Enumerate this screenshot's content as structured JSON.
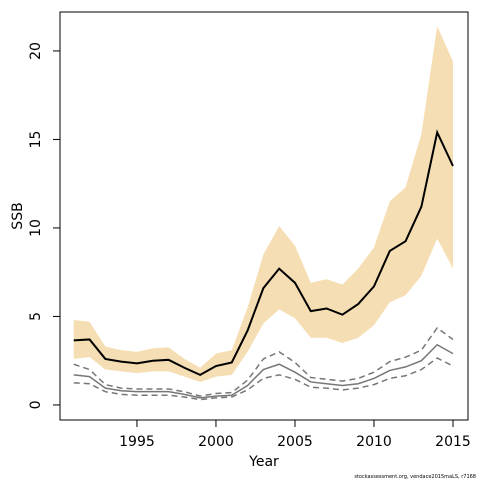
{
  "chart_data": {
    "type": "line",
    "xlabel": "Year",
    "ylabel": "SSB",
    "footnote": "stockassessment.org, vendace2015maLS, r7168",
    "x": [
      1991,
      1992,
      1993,
      1994,
      1995,
      1996,
      1997,
      1998,
      1999,
      2000,
      2001,
      2002,
      2003,
      2004,
      2005,
      2006,
      2007,
      2008,
      2009,
      2010,
      2011,
      2012,
      2013,
      2014,
      2015
    ],
    "band": {
      "color": "#f5deb3",
      "upper": [
        4.8,
        4.7,
        3.3,
        3.1,
        3.0,
        3.2,
        3.25,
        2.6,
        2.1,
        2.9,
        3.1,
        5.5,
        8.5,
        10.1,
        9.0,
        6.9,
        7.1,
        6.8,
        7.7,
        8.9,
        11.5,
        12.3,
        15.3,
        21.4,
        19.4
      ],
      "lower": [
        2.6,
        2.7,
        2.0,
        1.9,
        1.8,
        1.9,
        1.9,
        1.6,
        1.3,
        1.6,
        1.7,
        3.0,
        4.6,
        5.4,
        4.9,
        3.8,
        3.8,
        3.5,
        3.8,
        4.5,
        5.8,
        6.2,
        7.3,
        9.4,
        7.7
      ]
    },
    "series": [
      {
        "color": "#000000",
        "width": 2,
        "dashed": false,
        "values": [
          3.65,
          3.7,
          2.6,
          2.45,
          2.35,
          2.5,
          2.55,
          2.1,
          1.7,
          2.2,
          2.4,
          4.2,
          6.6,
          7.7,
          6.9,
          5.3,
          5.45,
          5.1,
          5.7,
          6.7,
          8.7,
          9.25,
          11.2,
          15.4,
          13.5
        ]
      },
      {
        "color": "#777777",
        "width": 1.5,
        "dashed": false,
        "values": [
          1.7,
          1.6,
          0.95,
          0.8,
          0.75,
          0.75,
          0.75,
          0.6,
          0.4,
          0.5,
          0.55,
          1.1,
          2.0,
          2.3,
          1.85,
          1.3,
          1.2,
          1.1,
          1.2,
          1.5,
          1.95,
          2.15,
          2.5,
          3.4,
          2.9
        ]
      },
      {
        "color": "#777777",
        "width": 1.5,
        "dashed": true,
        "values": [
          2.3,
          2.0,
          1.15,
          0.95,
          0.9,
          0.9,
          0.9,
          0.75,
          0.5,
          0.65,
          0.7,
          1.4,
          2.6,
          3.0,
          2.4,
          1.55,
          1.45,
          1.35,
          1.5,
          1.85,
          2.45,
          2.7,
          3.1,
          4.35,
          3.7
        ]
      },
      {
        "color": "#777777",
        "width": 1.5,
        "dashed": true,
        "values": [
          1.25,
          1.2,
          0.75,
          0.6,
          0.55,
          0.55,
          0.55,
          0.45,
          0.3,
          0.4,
          0.45,
          0.85,
          1.5,
          1.7,
          1.45,
          1.0,
          0.95,
          0.85,
          0.95,
          1.15,
          1.5,
          1.65,
          2.0,
          2.65,
          2.2
        ]
      }
    ],
    "xlim": [
      1990.13,
      2015.95
    ],
    "ylim": [
      -0.85,
      22.2
    ],
    "xticks": [
      1995,
      2000,
      2005,
      2010,
      2015
    ],
    "yticks": [
      0,
      5,
      10,
      15,
      20
    ]
  }
}
